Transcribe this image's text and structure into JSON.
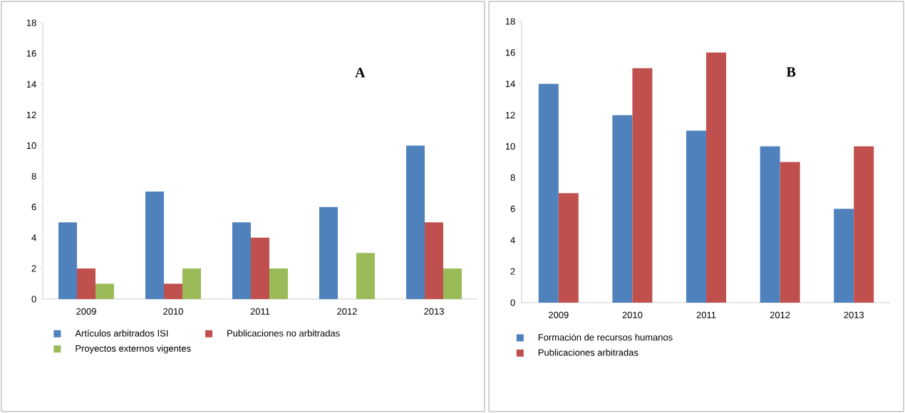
{
  "chart_data": [
    {
      "type": "bar",
      "categories": [
        "2009",
        "2010",
        "2011",
        "2012",
        "2013"
      ],
      "series": [
        {
          "name": "Artículos arbitrados ISI",
          "color": "#4f81bd",
          "values": [
            5,
            7,
            5,
            6,
            10
          ]
        },
        {
          "name": "Publicaciones no arbitradas",
          "color": "#c0504d",
          "values": [
            2,
            1,
            4,
            null,
            5
          ]
        },
        {
          "name": "Proyectos externos vigentes",
          "color": "#9bbb59",
          "values": [
            1,
            2,
            2,
            3,
            2
          ]
        }
      ],
      "ylim": [
        0,
        18
      ],
      "yticks": [
        0,
        2,
        4,
        6,
        8,
        10,
        12,
        14,
        16,
        18
      ],
      "legend": "bottom",
      "annotations": [
        "A"
      ]
    },
    {
      "type": "bar",
      "categories": [
        "2009",
        "2010",
        "2011",
        "2012",
        "2013"
      ],
      "series": [
        {
          "name": "Formación de recursos humanos",
          "color": "#4f81bd",
          "values": [
            14,
            12,
            11,
            10,
            6
          ]
        },
        {
          "name": "Publicaciones arbitradas",
          "color": "#c0504d",
          "values": [
            7,
            15,
            16,
            9,
            10
          ]
        }
      ],
      "ylim": [
        0,
        18
      ],
      "yticks": [
        0,
        2,
        4,
        6,
        8,
        10,
        12,
        14,
        16,
        18
      ],
      "legend": "bottom",
      "annotations": [
        "B"
      ]
    }
  ]
}
